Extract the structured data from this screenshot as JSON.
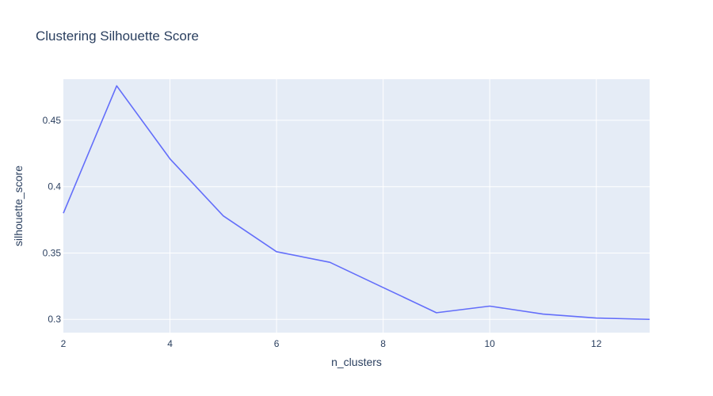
{
  "chart_data": {
    "type": "line",
    "title": "Clustering Silhouette Score",
    "xlabel": "n_clusters",
    "ylabel": "silhouette_score",
    "x": [
      2,
      3,
      4,
      5,
      6,
      7,
      8,
      9,
      10,
      11,
      12,
      13
    ],
    "series": [
      {
        "values": [
          0.38,
          0.476,
          0.421,
          0.378,
          0.351,
          0.343,
          0.324,
          0.305,
          0.31,
          0.304,
          0.301,
          0.3
        ]
      }
    ],
    "xlim": [
      2,
      13
    ],
    "ylim": [
      0.29,
      0.481
    ],
    "xticks": [
      2,
      4,
      6,
      8,
      10,
      12
    ],
    "xtick_labels": [
      "2",
      "4",
      "6",
      "8",
      "10",
      "12"
    ],
    "yticks": [
      0.3,
      0.35,
      0.4,
      0.45
    ],
    "ytick_labels": [
      "0.3",
      "0.35",
      "0.4",
      "0.45"
    ],
    "grid": true,
    "colors": {
      "line": "#636efa",
      "plot_bg": "#e5ecf6",
      "grid": "#ffffff",
      "text": "#2a3f5f"
    }
  }
}
